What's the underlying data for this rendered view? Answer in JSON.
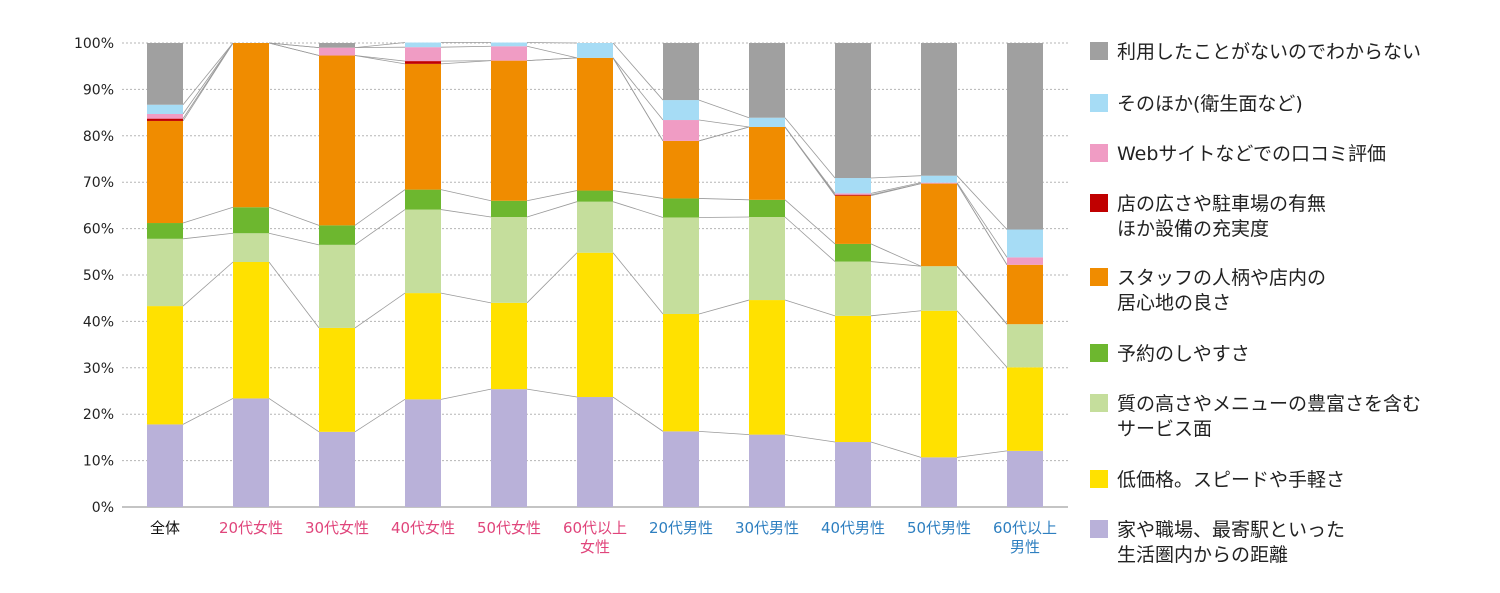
{
  "chart_data": {
    "type": "bar",
    "stacked": true,
    "percent": true,
    "ylim": [
      0,
      100
    ],
    "yticks": [
      "0%",
      "10%",
      "20%",
      "30%",
      "40%",
      "50%",
      "60%",
      "70%",
      "80%",
      "90%",
      "100%"
    ],
    "grid": true,
    "legend_position": "right",
    "categories": [
      {
        "lines": [
          "全体"
        ],
        "color": "#111111"
      },
      {
        "lines": [
          "20代女性"
        ],
        "color": "#e0457b"
      },
      {
        "lines": [
          "30代女性"
        ],
        "color": "#e0457b"
      },
      {
        "lines": [
          "40代女性"
        ],
        "color": "#e0457b"
      },
      {
        "lines": [
          "50代女性"
        ],
        "color": "#e0457b"
      },
      {
        "lines": [
          "60代以上",
          "女性"
        ],
        "color": "#e0457b"
      },
      {
        "lines": [
          "20代男性"
        ],
        "color": "#2e7fc0"
      },
      {
        "lines": [
          "30代男性"
        ],
        "color": "#2e7fc0"
      },
      {
        "lines": [
          "40代男性"
        ],
        "color": "#2e7fc0"
      },
      {
        "lines": [
          "50代男性"
        ],
        "color": "#2e7fc0"
      },
      {
        "lines": [
          "60代以上",
          "男性"
        ],
        "color": "#2e7fc0"
      }
    ],
    "series": [
      {
        "name": [
          "家や職場、最寄駅といった",
          "生活圏内からの距離"
        ],
        "color": "#b9b1d9",
        "values": [
          17.8,
          23.4,
          16.2,
          23.2,
          25.4,
          23.7,
          16.3,
          15.6,
          14.0,
          10.7,
          12.1
        ]
      },
      {
        "name": [
          "低価格。スピードや手軽さ"
        ],
        "color": "#ffe100",
        "values": [
          25.5,
          29.4,
          22.4,
          22.9,
          18.6,
          31.1,
          25.3,
          29.0,
          27.2,
          31.6,
          18.0
        ]
      },
      {
        "name": [
          "質の高さやメニューの豊富さを含む",
          "サービス面"
        ],
        "color": "#c5de9c",
        "values": [
          14.5,
          6.2,
          17.9,
          18.0,
          18.5,
          11.0,
          20.8,
          17.9,
          11.7,
          9.6,
          9.3
        ]
      },
      {
        "name": [
          "予約のしやすさ"
        ],
        "color": "#6db72f",
        "values": [
          3.4,
          5.6,
          4.2,
          4.3,
          3.5,
          2.4,
          4.1,
          3.7,
          3.8,
          0.0,
          0.0
        ]
      },
      {
        "name": [
          "スタッフの人柄や店内の",
          "居心地の良さ"
        ],
        "color": "#f08c00",
        "values": [
          22.0,
          35.4,
          36.6,
          27.1,
          30.2,
          28.6,
          12.4,
          15.7,
          10.4,
          17.8,
          12.8
        ]
      },
      {
        "name": [
          "店の広さや駐車場の有無",
          "ほか設備の充実度"
        ],
        "color": "#c00000",
        "values": [
          0.5,
          0.0,
          0.0,
          0.6,
          0.0,
          0.0,
          0.0,
          0.0,
          0.2,
          0.0,
          0.0
        ]
      },
      {
        "name": [
          "Webサイトなどでの口コミ評価"
        ],
        "color": "#f09cc4",
        "values": [
          1.0,
          0.0,
          1.7,
          3.0,
          3.1,
          0.0,
          4.5,
          0.0,
          0.3,
          0.2,
          1.6
        ]
      },
      {
        "name": [
          "そのほか(衛生面など)"
        ],
        "color": "#a6dcf5",
        "values": [
          2.0,
          0.0,
          0.0,
          1.0,
          0.8,
          3.2,
          4.3,
          2.0,
          3.3,
          1.5,
          6.0
        ]
      },
      {
        "name": [
          "利用したことがないのでわからない"
        ],
        "color": "#a0a0a0",
        "values": [
          13.3,
          0.0,
          1.0,
          0.0,
          0.0,
          0.0,
          12.3,
          16.1,
          29.1,
          28.6,
          40.2
        ]
      }
    ]
  }
}
